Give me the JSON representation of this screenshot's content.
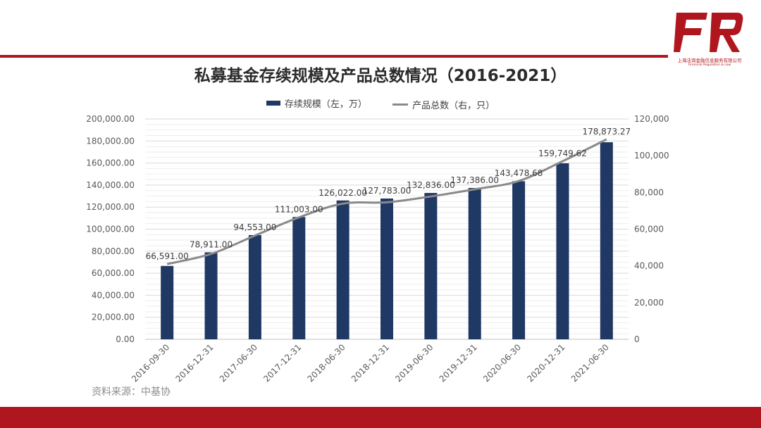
{
  "brand": {
    "logo_text": "FR",
    "company_cn": "上海法询金融信息服务有限公司",
    "company_en": "Financial Regulation & Law",
    "accent_color": "#b0161d"
  },
  "source_note": "资料来源：中基协",
  "chart_data": {
    "type": "bar",
    "title": "私募基金存续规模及产品总数情况（2016-2021）",
    "categories": [
      "2016-09-30",
      "2016-12-31",
      "2017-06-30",
      "2017-12-31",
      "2018-06-30",
      "2018-12-31",
      "2019-06-30",
      "2019-12-31",
      "2020-06-30",
      "2020-12-31",
      "2021-06-30"
    ],
    "series": [
      {
        "name": "存续规模（左，万）",
        "kind": "bar",
        "axis": "left",
        "color": "#1f3864",
        "values": [
          66591.0,
          78911.0,
          94553.0,
          111003.0,
          126022.0,
          127783.0,
          132836.0,
          137386.0,
          143478.68,
          159749.62,
          178873.27
        ],
        "data_labels": [
          "66,591.00",
          "78,911.00",
          "94,553.00",
          "111,003.00",
          "126,022.00",
          "127,783.00",
          "132,836.00",
          "137,386.00",
          "143,478.68",
          "159,749.62",
          "178,873.27"
        ]
      },
      {
        "name": "产品总数（右，只）",
        "kind": "line",
        "axis": "right",
        "color": "#8a8a8a",
        "values": [
          41000,
          46500,
          56500,
          66400,
          73900,
          74600,
          77800,
          81700,
          86200,
          97000,
          108900
        ]
      }
    ],
    "ylim_left": [
      0,
      200000
    ],
    "ylim_right": [
      0,
      120000
    ],
    "yticks_left": [
      "0.00",
      "20,000.00",
      "40,000.00",
      "60,000.00",
      "80,000.00",
      "100,000.00",
      "120,000.00",
      "140,000.00",
      "160,000.00",
      "180,000.00",
      "200,000.00"
    ],
    "yticks_right": [
      "0",
      "20,000",
      "40,000",
      "60,000",
      "80,000",
      "100,000",
      "120,000"
    ],
    "grid": true,
    "legend_position": "top"
  }
}
